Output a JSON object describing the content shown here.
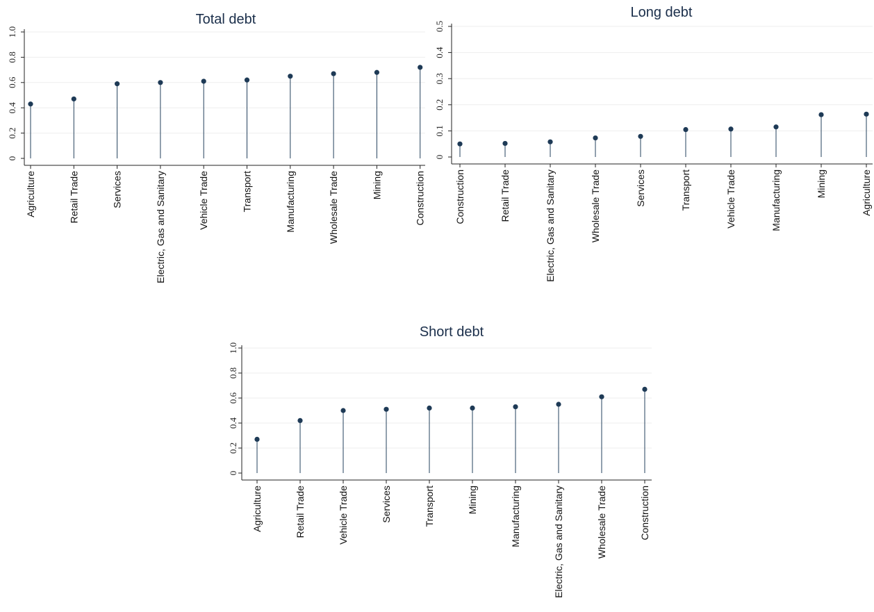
{
  "chart_data": [
    {
      "type": "lollipop",
      "title": "Total debt",
      "categories": [
        "Agriculture",
        "Retail Trade",
        "Services",
        "Electric, Gas and Sanitary",
        "Vehicle Trade",
        "Transport",
        "Manufacturing",
        "Wholesale Trade",
        "Mining",
        "Construction"
      ],
      "values": [
        0.43,
        0.47,
        0.59,
        0.6,
        0.61,
        0.62,
        0.65,
        0.67,
        0.68,
        0.72
      ],
      "ylim": [
        0,
        1.0
      ],
      "yticks": [
        "0",
        "0.2",
        "0.4",
        "0.6",
        "0.8",
        "1.0"
      ],
      "grid": true
    },
    {
      "type": "lollipop",
      "title": "Long debt",
      "categories": [
        "Construction",
        "Retail Trade",
        "Electric, Gas and Sanitary",
        "Wholesale Trade",
        "Services",
        "Transport",
        "Vehicle Trade",
        "Manufacturing",
        "Mining",
        "Agriculture"
      ],
      "values": [
        0.05,
        0.052,
        0.058,
        0.073,
        0.079,
        0.105,
        0.107,
        0.115,
        0.162,
        0.164
      ],
      "ylim": [
        0,
        0.5
      ],
      "yticks": [
        "0",
        "0.1",
        "0.2",
        "0.3",
        "0.4",
        "0.5"
      ],
      "grid": true
    },
    {
      "type": "lollipop",
      "title": "Short debt",
      "categories": [
        "Agriculture",
        "Retail Trade",
        "Vehicle Trade",
        "Services",
        "Transport",
        "Mining",
        "Manufacturing",
        "Electric, Gas and Sanitary",
        "Wholesale Trade",
        "Construction"
      ],
      "values": [
        0.27,
        0.42,
        0.5,
        0.51,
        0.52,
        0.52,
        0.53,
        0.55,
        0.61,
        0.67
      ],
      "ylim": [
        0,
        1.0
      ],
      "yticks": [
        "0",
        "0.2",
        "0.4",
        "0.6",
        "0.8",
        "1.0"
      ],
      "grid": true
    }
  ]
}
